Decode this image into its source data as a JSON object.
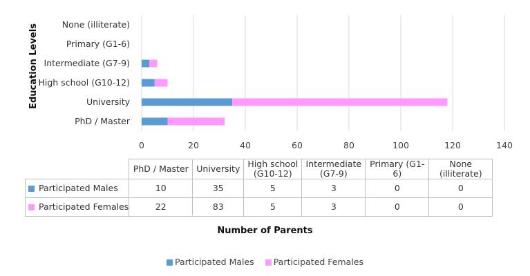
{
  "chart_data": {
    "type": "bar",
    "orientation": "horizontal",
    "stacked": true,
    "categories": [
      "None (illiterate)",
      "Primary (G1-6)",
      "Intermediate (G7-9)",
      "High school (G10-12)",
      "University",
      "PhD / Master"
    ],
    "series": [
      {
        "name": "Participated Males",
        "color": "#5b9bd5",
        "values": [
          0,
          0,
          3,
          5,
          35,
          10
        ]
      },
      {
        "name": "Participated Females",
        "color": "#ff99ff",
        "values": [
          0,
          0,
          3,
          5,
          83,
          22
        ]
      }
    ],
    "xlabel": "Number of Parents",
    "ylabel": "Education Levels",
    "xlim": [
      0,
      140
    ],
    "xticks": [
      0,
      20,
      40,
      60,
      80,
      100,
      120,
      140
    ],
    "grid": "vertical",
    "legend": "bottom",
    "data_table": {
      "columns": [
        "PhD / Master",
        "University",
        "High school (G10-12)",
        "Intermediate (G7-9)",
        "Primary (G1-6)",
        "None (illiterate)"
      ],
      "rows": [
        {
          "label": "Participated Males",
          "color": "#5b9bd5",
          "values": [
            "10",
            "35",
            "5",
            "3",
            "0",
            "0"
          ]
        },
        {
          "label": "Participated Females",
          "color": "#ff99ff",
          "values": [
            "22",
            "83",
            "5",
            "3",
            "0",
            "0"
          ]
        }
      ]
    }
  }
}
